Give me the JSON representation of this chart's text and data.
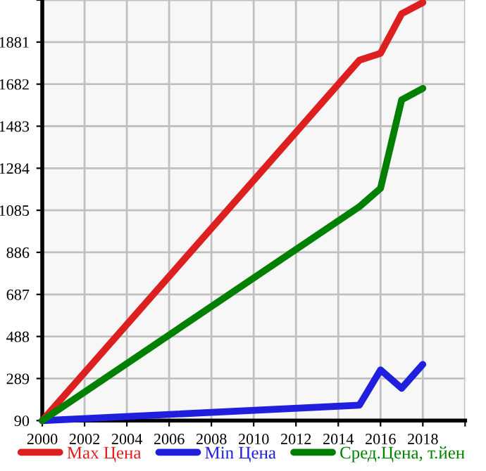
{
  "chart_data": {
    "type": "line",
    "x": [
      2000,
      2015,
      2016,
      2017,
      2018
    ],
    "series": [
      {
        "name": "Max Цена",
        "color": "#dd1f1f",
        "values": [
          90,
          1795,
          1828,
          2015,
          2068
        ]
      },
      {
        "name": "Min Цена",
        "color": "#1f1fdd",
        "values": [
          90,
          163,
          330,
          243,
          356
        ]
      },
      {
        "name": "Сред.Цена, т.йен",
        "color": "#008000",
        "values": [
          90,
          1102,
          1189,
          1608,
          1662
        ]
      }
    ],
    "xlim": [
      2000,
      2020
    ],
    "xticks": [
      2000,
      2002,
      2004,
      2006,
      2008,
      2010,
      2012,
      2014,
      2016,
      2018,
      {
        "value": 2020,
        "label": null
      }
    ],
    "ylim": [
      90,
      2080
    ],
    "yticks": [
      90,
      289,
      488,
      687,
      886,
      1085,
      1284,
      1483,
      1682,
      1881,
      {
        "value": 2080,
        "label": null
      }
    ],
    "grid": true,
    "legend": "bottom",
    "marker": "none",
    "line_style": "solid"
  }
}
